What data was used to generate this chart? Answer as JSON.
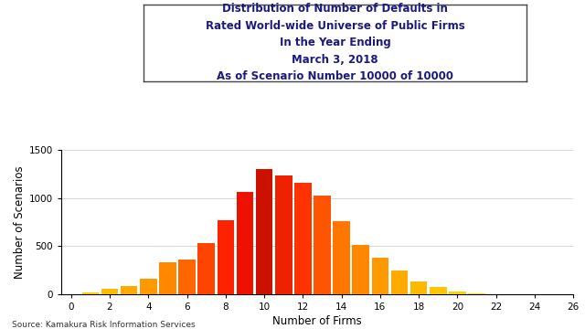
{
  "title_lines": [
    "Distribution of Number of Defaults in",
    "Rated World-wide Universe of Public Firms",
    "In the Year Ending",
    "March 3, 2018",
    "As of Scenario Number 10000 of 10000"
  ],
  "xlabel": "Number of Firms",
  "ylabel": "Number of Scenarios",
  "source": "Source: Kamakura Risk Information Services",
  "xlim": [
    -0.5,
    26
  ],
  "ylim": [
    0,
    1500
  ],
  "yticks": [
    0,
    500,
    1000,
    1500
  ],
  "xticks": [
    0,
    2,
    4,
    6,
    8,
    10,
    12,
    14,
    16,
    18,
    20,
    22,
    24,
    26
  ],
  "bar_x": [
    0,
    1,
    2,
    3,
    4,
    5,
    6,
    7,
    8,
    9,
    10,
    11,
    12,
    13,
    14,
    15,
    16,
    17,
    18,
    19,
    20,
    21,
    22,
    23
  ],
  "bar_height": [
    5,
    20,
    60,
    90,
    160,
    330,
    360,
    530,
    770,
    1060,
    1300,
    1230,
    1160,
    1020,
    760,
    510,
    380,
    250,
    130,
    80,
    35,
    15,
    5,
    3
  ],
  "bar_colors": [
    "#FFD700",
    "#FFCC00",
    "#FFBB00",
    "#FFAA00",
    "#FF9900",
    "#FF8800",
    "#FF6600",
    "#FF4400",
    "#FF2200",
    "#EE1100",
    "#CC1100",
    "#EE2200",
    "#FF3300",
    "#FF5500",
    "#FF7700",
    "#FF8800",
    "#FF9900",
    "#FFAA00",
    "#FFB800",
    "#FFC500",
    "#FFD000",
    "#FFD700",
    "#FFE000",
    "#FFE500"
  ],
  "bar_width": 0.88,
  "background_color": "#FFFFFF",
  "title_fontsize": 8.5,
  "axis_fontsize": 7.5,
  "label_fontsize": 8.5,
  "grid_color": "#C8C8C8",
  "title_text_color": "#1A1A80"
}
